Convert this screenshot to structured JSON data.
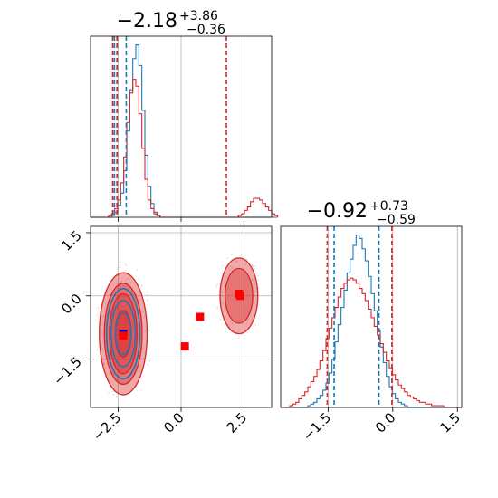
{
  "chart_data": {
    "type": "corner",
    "grid": true,
    "colors": {
      "blue": "#1f77b4",
      "red": "#d62728",
      "marker_red": "#ff0000",
      "marker_blue": "#0000ff",
      "grid": "#b0b0b0"
    },
    "params": [
      {
        "xlim": [
          -3.6,
          3.6
        ],
        "ticks": [
          -2.5,
          0.0,
          2.5
        ],
        "tick_labels": [
          "−2.5",
          "0.0",
          "2.5"
        ]
      },
      {
        "ylim": [
          -2.65,
          1.65
        ],
        "xlim": [
          -2.6,
          1.6
        ],
        "ticks": [
          -1.5,
          0.0,
          1.5
        ],
        "tick_labels": [
          "−1.5",
          "0.0",
          "1.5"
        ]
      }
    ],
    "titles": [
      {
        "main": "−2.18",
        "sup": "+3.86",
        "sub": "−0.36"
      },
      {
        "main": "−0.92",
        "sup": "+0.73",
        "sub": "−0.59"
      }
    ],
    "hist1": {
      "bin_edges_start": -3.6,
      "bin_width": 0.12,
      "ymax": 1.05,
      "series": [
        {
          "name": "",
          "color": "blue",
          "values": [
            0,
            0,
            0,
            0,
            0,
            0,
            0,
            0.01,
            0.03,
            0.07,
            0.14,
            0.27,
            0.5,
            0.74,
            0.92,
            1.0,
            0.88,
            0.62,
            0.36,
            0.18,
            0.08,
            0.03,
            0.01,
            0,
            0,
            0,
            0,
            0,
            0,
            0,
            0,
            0,
            0,
            0,
            0,
            0,
            0,
            0,
            0,
            0,
            0,
            0,
            0,
            0,
            0,
            0,
            0,
            0,
            0,
            0,
            0,
            0,
            0,
            0,
            0,
            0,
            0,
            0,
            0,
            0,
            0,
            0
          ]
        },
        {
          "name": "",
          "color": "red",
          "values": [
            0,
            0,
            0,
            0,
            0,
            0,
            0.01,
            0.02,
            0.05,
            0.1,
            0.2,
            0.35,
            0.55,
            0.72,
            0.8,
            0.76,
            0.6,
            0.4,
            0.22,
            0.1,
            0.05,
            0.02,
            0.01,
            0,
            0,
            0,
            0,
            0,
            0,
            0,
            0,
            0,
            0,
            0,
            0,
            0,
            0,
            0,
            0,
            0,
            0,
            0,
            0,
            0,
            0,
            0,
            0,
            0,
            0,
            0.01,
            0.02,
            0.04,
            0.06,
            0.09,
            0.11,
            0.11,
            0.1,
            0.08,
            0.06,
            0.04,
            0.02,
            0.01
          ]
        }
      ],
      "quantile_lines": [
        {
          "color": "blue",
          "values": [
            -2.65,
            -2.55,
            -2.18
          ]
        },
        {
          "color": "red",
          "values": [
            -2.54,
            -2.72,
            1.8
          ]
        }
      ]
    },
    "hist2": {
      "bin_edges_start": -2.6,
      "bin_width": 0.07,
      "ymax": 1.05,
      "series": [
        {
          "name": "",
          "color": "blue",
          "values": [
            0,
            0,
            0,
            0,
            0,
            0,
            0,
            0,
            0,
            0.01,
            0.02,
            0.03,
            0.05,
            0.07,
            0.1,
            0.14,
            0.2,
            0.28,
            0.38,
            0.48,
            0.58,
            0.68,
            0.78,
            0.86,
            0.94,
            1.0,
            0.98,
            0.92,
            0.85,
            0.76,
            0.66,
            0.56,
            0.45,
            0.35,
            0.26,
            0.18,
            0.12,
            0.08,
            0.05,
            0.03,
            0.02,
            0.01,
            0,
            0,
            0,
            0,
            0,
            0,
            0,
            0,
            0,
            0,
            0,
            0,
            0,
            0,
            0,
            0,
            0,
            0
          ]
        },
        {
          "name": "",
          "color": "red",
          "values": [
            0,
            0,
            0,
            0.01,
            0.02,
            0.03,
            0.05,
            0.07,
            0.09,
            0.12,
            0.15,
            0.18,
            0.22,
            0.27,
            0.33,
            0.4,
            0.46,
            0.52,
            0.58,
            0.64,
            0.69,
            0.72,
            0.74,
            0.75,
            0.74,
            0.72,
            0.69,
            0.66,
            0.62,
            0.57,
            0.52,
            0.47,
            0.42,
            0.37,
            0.32,
            0.27,
            0.23,
            0.19,
            0.16,
            0.13,
            0.11,
            0.09,
            0.07,
            0.06,
            0.05,
            0.04,
            0.03,
            0.03,
            0.02,
            0.02,
            0.01,
            0.01,
            0.01,
            0.01,
            0,
            0,
            0,
            0,
            0,
            0
          ]
        }
      ],
      "quantile_lines": [
        {
          "color": "blue",
          "values": [
            -1.36,
            -0.32
          ]
        },
        {
          "color": "red",
          "values": [
            -1.52,
            -0.02
          ]
        }
      ]
    },
    "scatter2d": {
      "blobs": [
        {
          "cx": -2.3,
          "cy": -0.9,
          "levels": [
            {
              "rx": 0.95,
              "ry": 1.45
            },
            {
              "rx": 0.75,
              "ry": 1.2
            },
            {
              "rx": 0.55,
              "ry": 0.95
            },
            {
              "rx": 0.32,
              "ry": 0.55
            }
          ]
        },
        {
          "cx": 2.3,
          "cy": 0.0,
          "levels": [
            {
              "rx": 0.75,
              "ry": 0.9
            },
            {
              "rx": 0.55,
              "ry": 0.65
            }
          ]
        }
      ],
      "markers": [
        {
          "color": "marker_blue",
          "x": -2.3,
          "y": -0.9
        },
        {
          "color": "marker_red",
          "x": -2.3,
          "y": -0.95
        },
        {
          "color": "marker_red",
          "x": 2.3,
          "y": 0.05
        },
        {
          "color": "marker_red",
          "x": 2.35,
          "y": 0.0
        },
        {
          "color": "marker_red",
          "x": 0.15,
          "y": -1.2
        },
        {
          "color": "marker_red",
          "x": 0.75,
          "y": -0.5
        }
      ]
    }
  }
}
